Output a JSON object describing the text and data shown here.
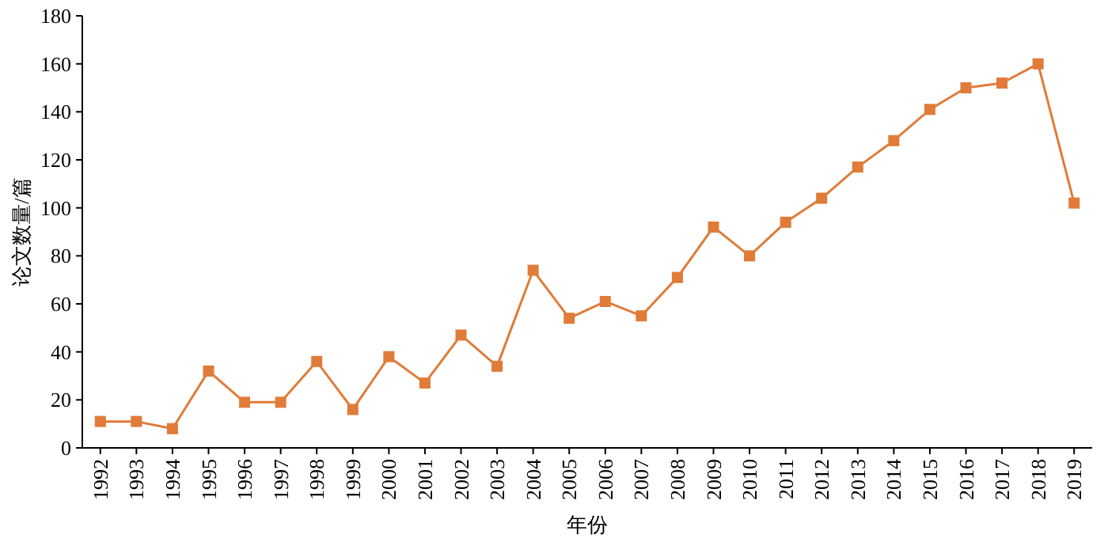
{
  "chart_data": {
    "type": "line",
    "xlabel": "年份",
    "ylabel": "论文数量/篇",
    "categories": [
      "1992",
      "1993",
      "1994",
      "1995",
      "1996",
      "1997",
      "1998",
      "1999",
      "2000",
      "2001",
      "2002",
      "2003",
      "2004",
      "2005",
      "2006",
      "2007",
      "2008",
      "2009",
      "2010",
      "2011",
      "2012",
      "2013",
      "2014",
      "2015",
      "2016",
      "2017",
      "2018",
      "2019"
    ],
    "values": [
      11,
      11,
      8,
      32,
      19,
      19,
      36,
      16,
      38,
      27,
      47,
      34,
      74,
      54,
      61,
      55,
      71,
      92,
      80,
      94,
      104,
      117,
      128,
      141,
      150,
      152,
      160,
      102
    ],
    "color": "#e07b39",
    "marker": "square",
    "line_style": "solid",
    "grid": false,
    "ylim": [
      0,
      180
    ],
    "yticks": [
      0,
      20,
      40,
      60,
      80,
      100,
      120,
      140,
      160,
      180
    ]
  }
}
